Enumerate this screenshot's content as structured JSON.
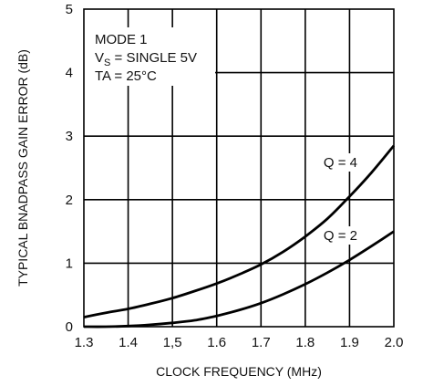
{
  "chart_data": {
    "type": "line",
    "xlabel": "CLOCK FREQUENCY (MHz)",
    "ylabel": "TYPICAL BNADPASS GAIN ERROR (dB)",
    "xlim": [
      1.3,
      2.0
    ],
    "ylim": [
      0,
      5
    ],
    "x_ticks": [
      1.3,
      1.4,
      1.5,
      1.6,
      1.7,
      1.8,
      1.9,
      2.0
    ],
    "x_tick_labels": [
      "1.3",
      "1.4",
      "1,5",
      "1.6",
      "1.7",
      "1.8",
      "1.9",
      "2.0"
    ],
    "y_ticks": [
      0,
      1,
      2,
      3,
      4,
      5
    ],
    "y_tick_labels": [
      "0",
      "1",
      "2",
      "3",
      "4",
      "5"
    ],
    "grid": true,
    "annotations": {
      "line1": "MODE 1",
      "line2_prefix": "V",
      "line2_sub": "S",
      "line2_rest": " = SINGLE 5V",
      "line3": "TA = 25°C"
    },
    "series": [
      {
        "name": "Q = 4",
        "x": [
          1.3,
          1.35,
          1.4,
          1.45,
          1.5,
          1.55,
          1.6,
          1.65,
          1.7,
          1.75,
          1.8,
          1.85,
          1.9,
          1.95,
          2.0
        ],
        "y": [
          0.15,
          0.22,
          0.28,
          0.36,
          0.45,
          0.56,
          0.68,
          0.82,
          0.98,
          1.18,
          1.42,
          1.7,
          2.05,
          2.43,
          2.85
        ]
      },
      {
        "name": "Q = 2",
        "x": [
          1.3,
          1.35,
          1.4,
          1.45,
          1.5,
          1.55,
          1.6,
          1.65,
          1.7,
          1.75,
          1.8,
          1.85,
          1.9,
          1.95,
          2.0
        ],
        "y": [
          0.0,
          0.0,
          0.01,
          0.03,
          0.06,
          0.1,
          0.17,
          0.26,
          0.37,
          0.51,
          0.67,
          0.85,
          1.05,
          1.27,
          1.5
        ]
      }
    ]
  }
}
